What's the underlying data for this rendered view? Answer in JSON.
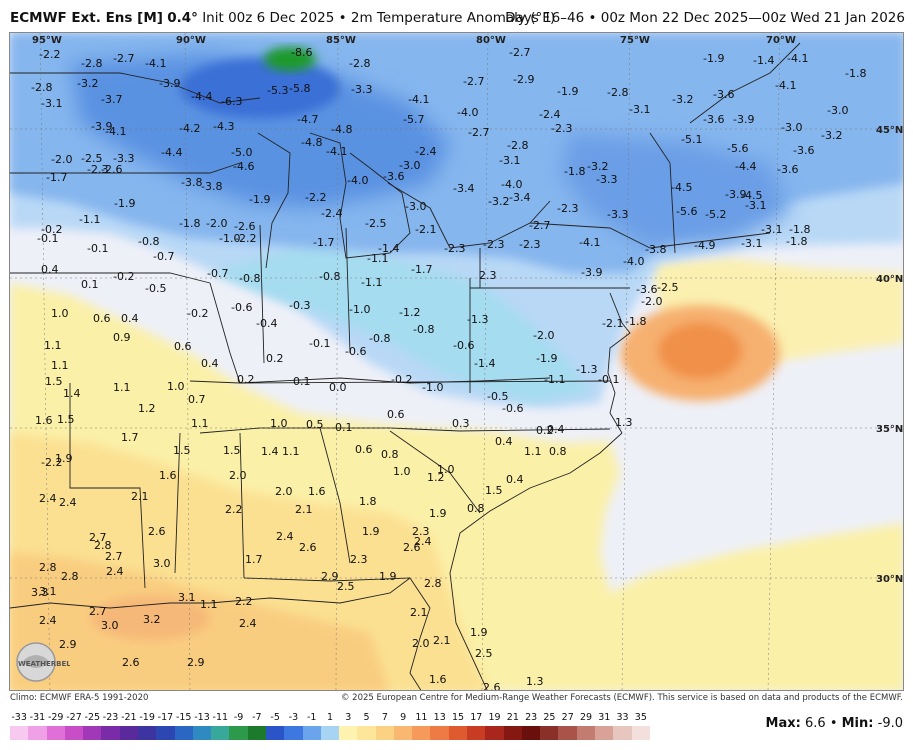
{
  "header": {
    "model": "ECMWF Ext. Ens [M]",
    "resolution": "0.4°",
    "init": "Init 00z 6 Dec 2025",
    "bullet": "•",
    "variable": "2m Temperature Anomaly (°F)",
    "valid": "Days 16–46 • 00z Mon 22 Dec 2025—00z Wed 21 Jan 2026"
  },
  "footer": {
    "climo": "Climo: ECMWF ERA-5 1991-2020",
    "copyright": "© 2025 European Centre for Medium-Range Weather Forecasts (ECMWF). This service is based on data and products of the ECMWF."
  },
  "stats": {
    "max_label": "Max:",
    "max": "6.6",
    "sep": "•",
    "min_label": "Min:",
    "min": "-9.0"
  },
  "logo": {
    "text": "WEATHERBELL",
    "icon": "weatherbell-logo-icon"
  },
  "axes": {
    "lon": [
      "95°W",
      "90°W",
      "85°W",
      "80°W",
      "75°W",
      "70°W"
    ],
    "lat": [
      "45°N",
      "40°N",
      "35°N",
      "30°N"
    ]
  },
  "colorbar": {
    "ticks": [
      "-33",
      "-31",
      "-29",
      "-27",
      "-25",
      "-23",
      "-21",
      "-19",
      "-17",
      "-15",
      "-13",
      "-11",
      "-9",
      "-7",
      "-5",
      "-3",
      "-1",
      "1",
      "3",
      "5",
      "7",
      "9",
      "11",
      "13",
      "15",
      "17",
      "19",
      "21",
      "23",
      "25",
      "27",
      "29",
      "31",
      "33",
      "35"
    ],
    "colors": [
      "#f7c8f0",
      "#f0a0e6",
      "#e070d8",
      "#c84ec8",
      "#a038b8",
      "#7a2ca8",
      "#5a2a9c",
      "#3c34a0",
      "#2c48b0",
      "#2a66c2",
      "#2e8ac0",
      "#38a89a",
      "#2c9a4a",
      "#1c7a2c",
      "#2a54c8",
      "#3c78e0",
      "#6aa4ec",
      "#a8d4f4",
      "#fff3b0",
      "#fde69a",
      "#fbd184",
      "#f8b870",
      "#f59a58",
      "#ee7a44",
      "#e05a30",
      "#c83c24",
      "#a8261c",
      "#861812",
      "#6a100c",
      "#8a3028",
      "#a85448",
      "#c27c70",
      "#d8a298",
      "#e8c6c0",
      "#f3e0dc"
    ]
  },
  "map_labels": [
    [
      "-2.2",
      38,
      53
    ],
    [
      "-2.8",
      80,
      62
    ],
    [
      "-2.7",
      112,
      57
    ],
    [
      "-4.1",
      144,
      62
    ],
    [
      "-8.6",
      290,
      51
    ],
    [
      "-2.8",
      348,
      62
    ],
    [
      "-2.7",
      508,
      51
    ],
    [
      "-1.9",
      702,
      57
    ],
    [
      "-1.4",
      752,
      59
    ],
    [
      "-4.1",
      786,
      57
    ],
    [
      "-1.8",
      844,
      72
    ],
    [
      "-2.8",
      30,
      86
    ],
    [
      "-3.2",
      76,
      82
    ],
    [
      "-3.9",
      158,
      82
    ],
    [
      "-5.3",
      266,
      89
    ],
    [
      "-5.8",
      288,
      87
    ],
    [
      "-3.3",
      350,
      88
    ],
    [
      "-2.7",
      462,
      80
    ],
    [
      "-2.9",
      512,
      78
    ],
    [
      "-1.9",
      556,
      90
    ],
    [
      "-2.8",
      606,
      91
    ],
    [
      "-3.6",
      712,
      93
    ],
    [
      "-4.1",
      774,
      84
    ],
    [
      "-3.1",
      40,
      102
    ],
    [
      "-3.7",
      100,
      98
    ],
    [
      "-4.4",
      190,
      95
    ],
    [
      "-6.3",
      220,
      100
    ],
    [
      "-4.1",
      407,
      98
    ],
    [
      "-4.0",
      456,
      111
    ],
    [
      "-2.4",
      538,
      113
    ],
    [
      "-3.1",
      628,
      108
    ],
    [
      "-3.2",
      671,
      98
    ],
    [
      "-3.0",
      826,
      109
    ],
    [
      "-3.9",
      90,
      125
    ],
    [
      "-4.2",
      178,
      127
    ],
    [
      "-4.3",
      212,
      125
    ],
    [
      "-4.7",
      296,
      118
    ],
    [
      "-4.8",
      330,
      128
    ],
    [
      "-5.7",
      402,
      118
    ],
    [
      "-2.7",
      467,
      131
    ],
    [
      "-2.3",
      550,
      127
    ],
    [
      "-3.6",
      702,
      118
    ],
    [
      "-3.9",
      732,
      118
    ],
    [
      "-3.0",
      780,
      126
    ],
    [
      "-3.2",
      820,
      134
    ],
    [
      "-4.1",
      104,
      130
    ],
    [
      "-5.0",
      230,
      151
    ],
    [
      "-4.8",
      300,
      141
    ],
    [
      "-4.1",
      325,
      150
    ],
    [
      "-2.4",
      414,
      150
    ],
    [
      "-2.8",
      506,
      144
    ],
    [
      "-5.1",
      680,
      138
    ],
    [
      "-5.6",
      726,
      147
    ],
    [
      "-4.4",
      734,
      165
    ],
    [
      "-3.6",
      792,
      149
    ],
    [
      "-2.0",
      50,
      158
    ],
    [
      "-2.5",
      80,
      157
    ],
    [
      "-3.3",
      112,
      157
    ],
    [
      "-4.4",
      160,
      151
    ],
    [
      "-4.6",
      232,
      165
    ],
    [
      "-3.0",
      398,
      164
    ],
    [
      "-3.1",
      498,
      159
    ],
    [
      "-1.8",
      563,
      170
    ],
    [
      "-3.2",
      586,
      165
    ],
    [
      "-3.6",
      776,
      168
    ],
    [
      "-1.7",
      45,
      176
    ],
    [
      "-2.3",
      86,
      168
    ],
    [
      "-2.6",
      100,
      168
    ],
    [
      "-3.8",
      180,
      181
    ],
    [
      "-3.8",
      200,
      185
    ],
    [
      "-4.0",
      346,
      179
    ],
    [
      "-3.6",
      382,
      175
    ],
    [
      "-3.4",
      452,
      187
    ],
    [
      "-4.0",
      500,
      183
    ],
    [
      "-3.3",
      595,
      178
    ],
    [
      "-4.5",
      670,
      186
    ],
    [
      "-1.9",
      113,
      202
    ],
    [
      "-1.9",
      248,
      198
    ],
    [
      "-2.2",
      304,
      196
    ],
    [
      "-2.4",
      320,
      212
    ],
    [
      "-3.0",
      404,
      205
    ],
    [
      "-3.2",
      487,
      200
    ],
    [
      "-3.4",
      508,
      196
    ],
    [
      "-2.3",
      556,
      207
    ],
    [
      "-3.3",
      606,
      213
    ],
    [
      "-5.6",
      675,
      210
    ],
    [
      "-5.2",
      704,
      213
    ],
    [
      "-3.9",
      724,
      193
    ],
    [
      "-4.5",
      740,
      194
    ],
    [
      "-3.1",
      744,
      204
    ],
    [
      "-1.1",
      78,
      218
    ],
    [
      "-1.8",
      178,
      222
    ],
    [
      "-2.0",
      205,
      222
    ],
    [
      "-2.6",
      233,
      225
    ],
    [
      "-2.5",
      364,
      222
    ],
    [
      "-2.1",
      414,
      228
    ],
    [
      "-2.7",
      528,
      224
    ],
    [
      "-3.1",
      760,
      228
    ],
    [
      "-1.8",
      788,
      228
    ],
    [
      "-0.2",
      40,
      228
    ],
    [
      "-0.1",
      36,
      237
    ],
    [
      "-0.8",
      137,
      240
    ],
    [
      "-1.0",
      218,
      237
    ],
    [
      "-2.2",
      234,
      237
    ],
    [
      "-1.7",
      312,
      241
    ],
    [
      "-1.4",
      377,
      247
    ],
    [
      "-2.3",
      443,
      247
    ],
    [
      "-2.3",
      482,
      243
    ],
    [
      "-2.3",
      518,
      243
    ],
    [
      "-4.1",
      578,
      241
    ],
    [
      "-3.8",
      644,
      248
    ],
    [
      "-4.9",
      693,
      244
    ],
    [
      "-3.1",
      740,
      242
    ],
    [
      "-1.8",
      785,
      240
    ],
    [
      "-0.1",
      86,
      247
    ],
    [
      "-0.7",
      152,
      255
    ],
    [
      "-1.1",
      366,
      257
    ],
    [
      "-1.7",
      410,
      268
    ],
    [
      "-4.0",
      622,
      260
    ],
    [
      "0.4",
      40,
      268
    ],
    [
      "-0.2",
      112,
      275
    ],
    [
      "-0.7",
      206,
      272
    ],
    [
      "-0.8",
      238,
      277
    ],
    [
      "-0.8",
      318,
      275
    ],
    [
      "2.3",
      478,
      274
    ],
    [
      "-3.9",
      580,
      271
    ],
    [
      "0.1",
      80,
      283
    ],
    [
      "-0.5",
      144,
      287
    ],
    [
      "-1.1",
      360,
      281
    ],
    [
      "-3.6",
      635,
      288
    ],
    [
      "-2.5",
      656,
      286
    ],
    [
      "-2.0",
      640,
      300
    ],
    [
      "1.0",
      50,
      312
    ],
    [
      "0.6",
      92,
      317
    ],
    [
      "0.4",
      120,
      317
    ],
    [
      "-0.6",
      230,
      306
    ],
    [
      "-0.2",
      186,
      312
    ],
    [
      "-0.3",
      288,
      304
    ],
    [
      "-0.4",
      255,
      322
    ],
    [
      "-1.0",
      348,
      308
    ],
    [
      "-1.2",
      398,
      311
    ],
    [
      "-1.3",
      466,
      318
    ],
    [
      "-0.8",
      412,
      328
    ],
    [
      "-2.1",
      601,
      322
    ],
    [
      "-1.8",
      624,
      320
    ],
    [
      "0.9",
      112,
      336
    ],
    [
      "-0.8",
      368,
      337
    ],
    [
      "-0.6",
      452,
      344
    ],
    [
      "-2.0",
      532,
      334
    ],
    [
      "1.1",
      43,
      344
    ],
    [
      "0.6",
      173,
      345
    ],
    [
      "0.2",
      265,
      357
    ],
    [
      "-0.1",
      308,
      342
    ],
    [
      "-0.6",
      344,
      350
    ],
    [
      "-1.9",
      535,
      357
    ],
    [
      "-1.3",
      575,
      368
    ],
    [
      "-1.4",
      473,
      362
    ],
    [
      "1.1",
      50,
      364
    ],
    [
      "0.4",
      200,
      362
    ],
    [
      "1.5",
      44,
      380
    ],
    [
      "0.2",
      236,
      378
    ],
    [
      "0.1",
      292,
      380
    ],
    [
      "0.0",
      328,
      386
    ],
    [
      "-0.2",
      390,
      378
    ],
    [
      "-1.0",
      421,
      386
    ],
    [
      "-1.1",
      543,
      378
    ],
    [
      "-0.1",
      597,
      378
    ],
    [
      "1.4",
      62,
      392
    ],
    [
      "1.1",
      112,
      386
    ],
    [
      "1.0",
      166,
      385
    ],
    [
      "-0.5",
      486,
      395
    ],
    [
      "1.2",
      137,
      407
    ],
    [
      "0.7",
      187,
      398
    ],
    [
      "-0.6",
      501,
      407
    ],
    [
      "0.6",
      386,
      413
    ],
    [
      "1.6",
      34,
      419
    ],
    [
      "1.5",
      56,
      418
    ],
    [
      "1.0",
      269,
      422
    ],
    [
      "0.5",
      305,
      423
    ],
    [
      "0.1",
      334,
      426
    ],
    [
      "0.3",
      451,
      422
    ],
    [
      "0.2",
      535,
      429
    ],
    [
      "0.4",
      546,
      428
    ],
    [
      "1.3",
      614,
      421
    ],
    [
      "1.1",
      190,
      422
    ],
    [
      "1.7",
      120,
      436
    ],
    [
      "0.4",
      494,
      440
    ],
    [
      "1.5",
      172,
      449
    ],
    [
      "1.4",
      260,
      450
    ],
    [
      "1.5",
      222,
      449
    ],
    [
      "1.1",
      281,
      450
    ],
    [
      "0.6",
      354,
      448
    ],
    [
      "0.8",
      380,
      453
    ],
    [
      "1.1",
      523,
      450
    ],
    [
      "0.8",
      548,
      450
    ],
    [
      "-2.2",
      40,
      461
    ],
    [
      "1.9",
      54,
      457
    ],
    [
      "1.0",
      392,
      470
    ],
    [
      "1.0",
      436,
      468
    ],
    [
      "1.6",
      158,
      474
    ],
    [
      "2.0",
      228,
      474
    ],
    [
      "1.2",
      426,
      476
    ],
    [
      "0.4",
      505,
      478
    ],
    [
      "2.1",
      130,
      495
    ],
    [
      "2.0",
      274,
      490
    ],
    [
      "1.6",
      307,
      490
    ],
    [
      "1.8",
      358,
      500
    ],
    [
      "1.5",
      484,
      489
    ],
    [
      "2.4",
      38,
      497
    ],
    [
      "2.4",
      58,
      501
    ],
    [
      "2.2",
      224,
      508
    ],
    [
      "2.1",
      294,
      508
    ],
    [
      "1.9",
      428,
      512
    ],
    [
      "0.8",
      466,
      507
    ],
    [
      "2.6",
      147,
      530
    ],
    [
      "1.9",
      361,
      530
    ],
    [
      "2.3",
      411,
      530
    ],
    [
      "2.4",
      275,
      535
    ],
    [
      "2.4",
      413,
      540
    ],
    [
      "2.6",
      402,
      546
    ],
    [
      "2.7",
      88,
      536
    ],
    [
      "2.8",
      93,
      544
    ],
    [
      "2.6",
      298,
      546
    ],
    [
      "2.7",
      104,
      555
    ],
    [
      "1.7",
      244,
      558
    ],
    [
      "2.3",
      349,
      558
    ],
    [
      "2.8",
      38,
      566
    ],
    [
      "3.0",
      152,
      562
    ],
    [
      "2.8",
      60,
      575
    ],
    [
      "2.4",
      105,
      570
    ],
    [
      "2.9",
      320,
      575
    ],
    [
      "2.5",
      336,
      585
    ],
    [
      "1.9",
      378,
      575
    ],
    [
      "2.8",
      423,
      582
    ],
    [
      "3.3",
      30,
      591
    ],
    [
      "3.1",
      38,
      590
    ],
    [
      "3.1",
      177,
      596
    ],
    [
      "1.1",
      199,
      603
    ],
    [
      "2.2",
      234,
      600
    ],
    [
      "2.7",
      88,
      610
    ],
    [
      "3.2",
      142,
      618
    ],
    [
      "3.0",
      100,
      624
    ],
    [
      "2.4",
      38,
      619
    ],
    [
      "2.4",
      238,
      622
    ],
    [
      "2.1",
      409,
      611
    ],
    [
      "1.9",
      469,
      631
    ],
    [
      "2.9",
      58,
      643
    ],
    [
      "2.0",
      411,
      642
    ],
    [
      "2.1",
      432,
      639
    ],
    [
      "2.5",
      474,
      652
    ],
    [
      "2.6",
      121,
      661
    ],
    [
      "2.9",
      186,
      661
    ],
    [
      "1.6",
      428,
      678
    ],
    [
      "1.3",
      525,
      680
    ],
    [
      "2.6",
      482,
      686
    ]
  ]
}
